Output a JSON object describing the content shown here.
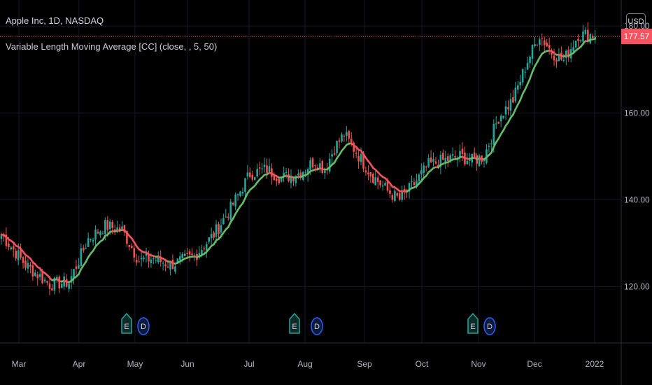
{
  "header": {
    "title": "Apple Inc, 1D, NASDAQ",
    "indicator": "Variable Length Moving Average [CC] (close, , 5, 50)"
  },
  "price_axis": {
    "currency": "USD",
    "last_price": "177.57"
  },
  "events": [
    {
      "icon": "earnings-icon",
      "text": "E"
    },
    {
      "icon": "dividend-icon",
      "text": "D"
    },
    {
      "icon": "earnings-icon",
      "text": "E"
    },
    {
      "icon": "dividend-icon",
      "text": "D"
    },
    {
      "icon": "earnings-icon",
      "text": "E"
    },
    {
      "icon": "dividend-icon",
      "text": "D"
    }
  ],
  "colors": {
    "up": "#26a69a",
    "down": "#ef5350",
    "ma_up": "#66bb6a",
    "ma_down": "#f7525f",
    "earnings": "#26a69a",
    "dividend": "#2962ff",
    "price_line": "#f7525f"
  },
  "chart_data": {
    "type": "candlestick",
    "ylim": [
      107,
      186
    ],
    "y_ticks": [
      "120.00",
      "140.00",
      "160.00",
      "180.00"
    ],
    "x_labels": [
      "Mar",
      "Apr",
      "May",
      "Jun",
      "Jul",
      "Aug",
      "Sep",
      "Oct",
      "Nov",
      "Dec",
      "2022"
    ],
    "last_price": 177.57,
    "close_path": [
      {
        "day": 0,
        "price": 132
      },
      {
        "day": 10,
        "price": 125
      },
      {
        "day": 20,
        "price": 120.5
      },
      {
        "day": 28,
        "price": 121
      },
      {
        "day": 36,
        "price": 131
      },
      {
        "day": 43,
        "price": 134
      },
      {
        "day": 50,
        "price": 133
      },
      {
        "day": 57,
        "price": 126
      },
      {
        "day": 63,
        "price": 126.5
      },
      {
        "day": 70,
        "price": 125
      },
      {
        "day": 80,
        "price": 127
      },
      {
        "day": 88,
        "price": 132
      },
      {
        "day": 95,
        "price": 138
      },
      {
        "day": 103,
        "price": 146
      },
      {
        "day": 110,
        "price": 147
      },
      {
        "day": 116,
        "price": 145
      },
      {
        "day": 123,
        "price": 146
      },
      {
        "day": 130,
        "price": 149
      },
      {
        "day": 134,
        "price": 147
      },
      {
        "day": 138,
        "price": 152
      },
      {
        "day": 142,
        "price": 155
      },
      {
        "day": 147,
        "price": 151
      },
      {
        "day": 153,
        "price": 146
      },
      {
        "day": 160,
        "price": 142
      },
      {
        "day": 165,
        "price": 140
      },
      {
        "day": 170,
        "price": 143
      },
      {
        "day": 177,
        "price": 148
      },
      {
        "day": 183,
        "price": 149
      },
      {
        "day": 190,
        "price": 150
      },
      {
        "day": 195,
        "price": 149
      },
      {
        "day": 200,
        "price": 150
      },
      {
        "day": 206,
        "price": 159
      },
      {
        "day": 212,
        "price": 163
      },
      {
        "day": 218,
        "price": 172
      },
      {
        "day": 223,
        "price": 178
      },
      {
        "day": 228,
        "price": 174
      },
      {
        "day": 233,
        "price": 172
      },
      {
        "day": 239,
        "price": 178
      },
      {
        "day": 246,
        "price": 178
      }
    ]
  }
}
